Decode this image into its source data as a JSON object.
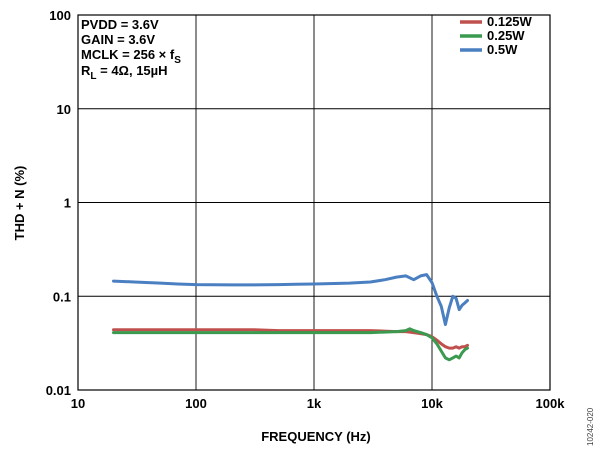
{
  "chart_data": {
    "type": "line",
    "title": "",
    "xlabel": "FREQUENCY (Hz)",
    "ylabel": "THD + N (%)",
    "x_scale": "log",
    "y_scale": "log",
    "xlim": [
      10,
      100000
    ],
    "ylim": [
      0.01,
      100
    ],
    "x_ticks": [
      10,
      100,
      1000,
      10000,
      100000
    ],
    "x_tick_labels": [
      "10",
      "100",
      "1k",
      "10k",
      "100k"
    ],
    "y_ticks": [
      0.01,
      0.1,
      1,
      10,
      100
    ],
    "y_tick_labels": [
      "0.01",
      "0.1",
      "1",
      "10",
      "100"
    ],
    "grid": true,
    "legend_position": "top-right",
    "conditions": {
      "line1": "PVDD = 3.6V",
      "line2": "GAIN = 3.6V",
      "line3_main": "MCLK = 256 × f",
      "line3_sub": "S",
      "line4_main": "R",
      "line4_sub": "L",
      "line4_rest": " = 4Ω, 15µH"
    },
    "figure_number": "10242-020",
    "series": [
      {
        "name": "0.125W",
        "color": "#c0504d",
        "x": [
          20,
          30,
          50,
          70,
          100,
          200,
          300,
          500,
          700,
          1000,
          2000,
          3000,
          5000,
          6000,
          7000,
          8000,
          9000,
          10000,
          11000,
          12000,
          13000,
          14000,
          15000,
          16000,
          17000,
          18000,
          19000,
          20000
        ],
        "y": [
          0.044,
          0.044,
          0.044,
          0.044,
          0.044,
          0.044,
          0.044,
          0.043,
          0.043,
          0.043,
          0.043,
          0.043,
          0.042,
          0.042,
          0.041,
          0.04,
          0.039,
          0.037,
          0.034,
          0.031,
          0.029,
          0.028,
          0.028,
          0.029,
          0.028,
          0.029,
          0.029,
          0.03
        ]
      },
      {
        "name": "0.25W",
        "color": "#3a9a4f",
        "x": [
          20,
          30,
          50,
          70,
          100,
          200,
          300,
          500,
          700,
          1000,
          2000,
          3000,
          5000,
          6000,
          6500,
          7000,
          8000,
          9000,
          10000,
          11000,
          12000,
          13000,
          14000,
          15000,
          16000,
          17000,
          18000,
          19000,
          20000
        ],
        "y": [
          0.041,
          0.041,
          0.041,
          0.041,
          0.041,
          0.041,
          0.041,
          0.041,
          0.041,
          0.041,
          0.041,
          0.041,
          0.042,
          0.043,
          0.045,
          0.043,
          0.041,
          0.039,
          0.036,
          0.031,
          0.026,
          0.022,
          0.021,
          0.022,
          0.023,
          0.022,
          0.025,
          0.027,
          0.028
        ]
      },
      {
        "name": "0.5W",
        "color": "#4a7fc1",
        "x": [
          20,
          30,
          50,
          70,
          100,
          200,
          300,
          500,
          700,
          1000,
          2000,
          3000,
          4000,
          5000,
          6000,
          7000,
          8000,
          9000,
          10000,
          11000,
          12000,
          13000,
          14000,
          15000,
          16000,
          17000,
          18000,
          19000,
          20000
        ],
        "y": [
          0.145,
          0.142,
          0.138,
          0.135,
          0.133,
          0.132,
          0.132,
          0.133,
          0.134,
          0.135,
          0.138,
          0.142,
          0.15,
          0.16,
          0.165,
          0.15,
          0.165,
          0.17,
          0.14,
          0.1,
          0.078,
          0.05,
          0.075,
          0.1,
          0.095,
          0.072,
          0.08,
          0.085,
          0.09
        ]
      }
    ]
  }
}
